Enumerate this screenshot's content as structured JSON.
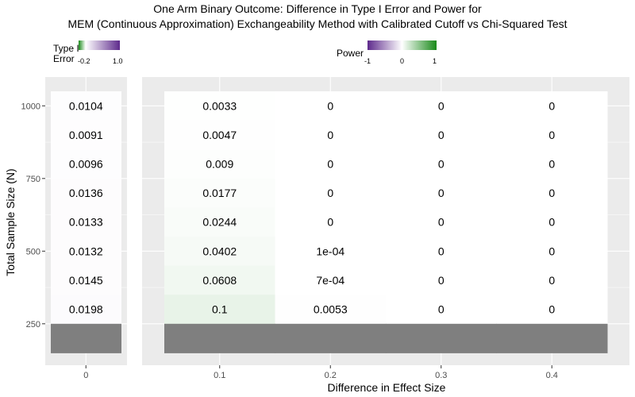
{
  "title_line1": "One Arm Binary Outcome: Difference in Type I Error and Power for",
  "title_line2": "MEM (Continuous Approximation) Exchangeability Method with Calibrated Cutoff vs Chi-Squared Test",
  "legend_type1": {
    "title_line1": "Type I",
    "title_line2": "Error",
    "tick_min": "-0.2",
    "tick_max": "1.0",
    "color_low": "#1a8a1a",
    "color_mid": "#ffffff",
    "color_high": "#5e2a8c"
  },
  "legend_power": {
    "title": "Power",
    "tick_min": "-1",
    "tick_mid": "0",
    "tick_max": "1",
    "color_low": "#5e2a8c",
    "color_mid": "#ffffff",
    "color_high": "#1a8a1a"
  },
  "chart_data": {
    "type": "heatmap",
    "title": "One Arm Binary Outcome: Difference in Type I Error and Power for MEM (Continuous Approximation) Exchangeability Method with Calibrated Cutoff vs Chi-Squared Test",
    "xlabel": "Difference in Effect Size",
    "ylabel": "Total Sample Size (N)",
    "y_ticks": [
      250,
      500,
      750,
      1000
    ],
    "y_rows": [
      1000,
      900,
      800,
      700,
      600,
      500,
      400,
      300,
      200
    ],
    "panels": [
      {
        "name": "Type I Error",
        "x_ticks": [
          "0"
        ],
        "columns": [
          0
        ],
        "cells": [
          [
            "0.0104"
          ],
          [
            "0.0091"
          ],
          [
            "0.0096"
          ],
          [
            "0.0136"
          ],
          [
            "0.0133"
          ],
          [
            "0.0132"
          ],
          [
            "0.0145"
          ],
          [
            "0.0198"
          ],
          [
            null
          ]
        ]
      },
      {
        "name": "Power",
        "x_ticks": [
          "0.1",
          "0.2",
          "0.3",
          "0.4"
        ],
        "columns": [
          0.1,
          0.2,
          0.3,
          0.4
        ],
        "cells": [
          [
            "0.0033",
            "0",
            "0",
            "0"
          ],
          [
            "0.0047",
            "0",
            "0",
            "0"
          ],
          [
            "0.009",
            "0",
            "0",
            "0"
          ],
          [
            "0.0177",
            "0",
            "0",
            "0"
          ],
          [
            "0.0244",
            "0",
            "0",
            "0"
          ],
          [
            "0.0402",
            "1e-04",
            "0",
            "0"
          ],
          [
            "0.0608",
            "7e-04",
            "0",
            "0"
          ],
          [
            "0.1",
            "0.0053",
            "0",
            "0"
          ],
          [
            null,
            null,
            null,
            null
          ]
        ]
      }
    ],
    "na_color": "#7f7f7f",
    "grid": true
  }
}
